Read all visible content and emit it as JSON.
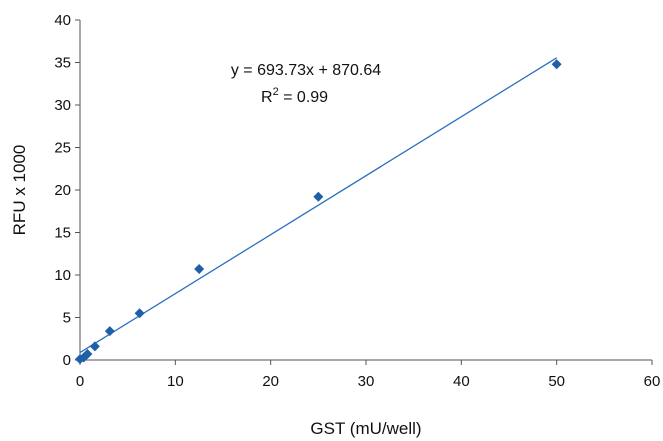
{
  "chart_data": {
    "type": "scatter",
    "xlabel": "GST (mU/well)",
    "ylabel": "RFU x 1000",
    "xlim": [
      0,
      60
    ],
    "ylim": [
      0,
      40
    ],
    "x_ticks": [
      0,
      10,
      20,
      30,
      40,
      50,
      60
    ],
    "y_ticks": [
      0,
      5,
      10,
      15,
      20,
      25,
      30,
      35,
      40
    ],
    "grid": false,
    "series": [
      {
        "marker": "diamond",
        "color": "#1f5fa8",
        "points": [
          {
            "x": 0,
            "y": 0.1
          },
          {
            "x": 0.39,
            "y": 0.3
          },
          {
            "x": 0.78,
            "y": 0.7
          },
          {
            "x": 1.56,
            "y": 1.6
          },
          {
            "x": 3.13,
            "y": 3.4
          },
          {
            "x": 6.25,
            "y": 5.5
          },
          {
            "x": 12.5,
            "y": 10.7
          },
          {
            "x": 25,
            "y": 19.2
          },
          {
            "x": 50,
            "y": 34.8
          }
        ]
      }
    ],
    "trendline": {
      "color": "#2a6fbf",
      "slope": 693.73,
      "intercept": 870.64,
      "y_scale": 1000,
      "x_range": [
        0,
        50
      ]
    },
    "equation": {
      "text": "y = 693.73x + 870.64",
      "r2_prefix": "R",
      "r2_exponent": "2",
      "r2_suffix": " = 0.99"
    }
  }
}
